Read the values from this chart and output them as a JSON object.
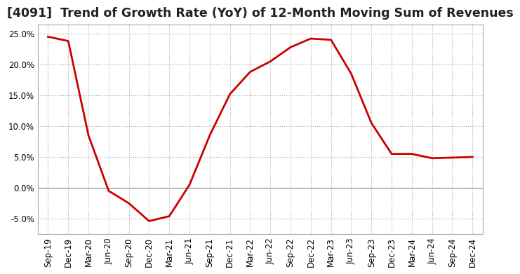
{
  "title": "[4091]  Trend of Growth Rate (YoY) of 12-Month Moving Sum of Revenues",
  "line_color": "#CC0000",
  "background_color": "#FFFFFF",
  "grid_color": "#AAAAAA",
  "zero_line_color": "#888888",
  "x_labels": [
    "Sep-19",
    "Dec-19",
    "Mar-20",
    "Jun-20",
    "Sep-20",
    "Dec-20",
    "Mar-21",
    "Jun-21",
    "Sep-21",
    "Dec-21",
    "Mar-22",
    "Jun-22",
    "Sep-22",
    "Dec-22",
    "Mar-23",
    "Jun-23",
    "Sep-23",
    "Dec-23",
    "Mar-24",
    "Jun-24",
    "Sep-24",
    "Dec-24"
  ],
  "y_values": [
    0.245,
    0.238,
    0.085,
    -0.005,
    -0.025,
    -0.054,
    -0.046,
    0.005,
    0.085,
    0.152,
    0.188,
    0.205,
    0.228,
    0.242,
    0.24,
    0.185,
    0.105,
    0.055,
    0.055,
    0.048,
    0.049,
    0.05
  ],
  "ylim": [
    -0.075,
    0.265
  ],
  "yticks": [
    -0.05,
    0.0,
    0.05,
    0.1,
    0.15,
    0.2,
    0.25
  ],
  "line_width": 2.0,
  "title_fontsize": 12.5,
  "tick_fontsize": 8.5
}
